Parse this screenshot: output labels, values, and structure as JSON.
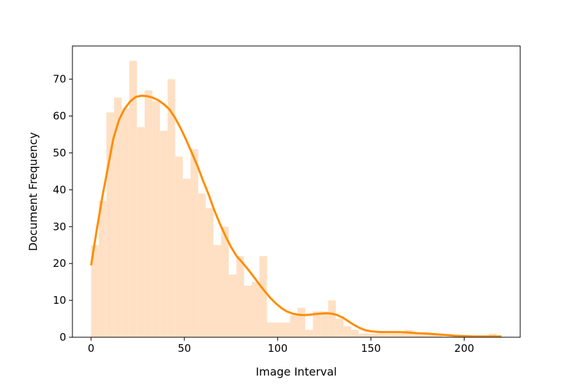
{
  "chart_data": {
    "type": "bar",
    "title": "",
    "xlabel": "Image Interval",
    "ylabel": "Document Frequency",
    "xlim": [
      -10,
      230
    ],
    "ylim": [
      0,
      79
    ],
    "xticks": [
      0,
      50,
      100,
      150,
      200
    ],
    "yticks": [
      0,
      10,
      20,
      30,
      40,
      50,
      60,
      70
    ],
    "grid": false,
    "legend": "none",
    "bin_width": 4.1,
    "bar_color": "#ffe0c4",
    "line_color": "#ff8c00",
    "bins": [
      {
        "x": 0,
        "y": 25
      },
      {
        "x": 4.1,
        "y": 37
      },
      {
        "x": 8.2,
        "y": 61
      },
      {
        "x": 12.3,
        "y": 65
      },
      {
        "x": 16.4,
        "y": 62
      },
      {
        "x": 20.5,
        "y": 75
      },
      {
        "x": 24.6,
        "y": 57
      },
      {
        "x": 28.7,
        "y": 67
      },
      {
        "x": 32.8,
        "y": 64
      },
      {
        "x": 36.9,
        "y": 56
      },
      {
        "x": 41.0,
        "y": 70
      },
      {
        "x": 45.1,
        "y": 49
      },
      {
        "x": 49.2,
        "y": 43
      },
      {
        "x": 53.3,
        "y": 51
      },
      {
        "x": 57.4,
        "y": 39
      },
      {
        "x": 61.5,
        "y": 35
      },
      {
        "x": 65.6,
        "y": 25
      },
      {
        "x": 69.7,
        "y": 30
      },
      {
        "x": 73.8,
        "y": 17
      },
      {
        "x": 77.9,
        "y": 22
      },
      {
        "x": 82.0,
        "y": 14
      },
      {
        "x": 86.1,
        "y": 15
      },
      {
        "x": 90.2,
        "y": 22
      },
      {
        "x": 94.3,
        "y": 4
      },
      {
        "x": 98.4,
        "y": 4
      },
      {
        "x": 102.5,
        "y": 4
      },
      {
        "x": 106.6,
        "y": 6
      },
      {
        "x": 110.7,
        "y": 8
      },
      {
        "x": 114.8,
        "y": 2
      },
      {
        "x": 118.9,
        "y": 7
      },
      {
        "x": 123.0,
        "y": 7
      },
      {
        "x": 127.1,
        "y": 10
      },
      {
        "x": 131.2,
        "y": 5
      },
      {
        "x": 135.3,
        "y": 3
      },
      {
        "x": 139.4,
        "y": 2
      },
      {
        "x": 143.5,
        "y": 1
      },
      {
        "x": 147.6,
        "y": 1
      },
      {
        "x": 151.7,
        "y": 1
      },
      {
        "x": 155.8,
        "y": 1
      },
      {
        "x": 159.9,
        "y": 1
      },
      {
        "x": 164.0,
        "y": 1
      },
      {
        "x": 168.1,
        "y": 2
      },
      {
        "x": 172.2,
        "y": 1
      },
      {
        "x": 176.3,
        "y": 1
      },
      {
        "x": 180.4,
        "y": 1
      },
      {
        "x": 184.5,
        "y": 1
      },
      {
        "x": 188.6,
        "y": 0
      },
      {
        "x": 192.7,
        "y": 0
      },
      {
        "x": 196.8,
        "y": 0
      },
      {
        "x": 200.9,
        "y": 0
      },
      {
        "x": 205.0,
        "y": 0
      },
      {
        "x": 209.1,
        "y": 0
      },
      {
        "x": 213.2,
        "y": 1
      }
    ],
    "kde": {
      "x": [
        0,
        3,
        6,
        9,
        12,
        15,
        18,
        21,
        24,
        27,
        30,
        33,
        36,
        39,
        42,
        45,
        48,
        51,
        54,
        57,
        60,
        63,
        66,
        69,
        72,
        75,
        78,
        81,
        84,
        87,
        90,
        93,
        96,
        99,
        102,
        105,
        108,
        111,
        114,
        117,
        120,
        123,
        126,
        129,
        132,
        135,
        138,
        141,
        144,
        147,
        150,
        155,
        160,
        165,
        170,
        175,
        180,
        185,
        190,
        195,
        200,
        205,
        210,
        215,
        220
      ],
      "y": [
        19.5,
        29,
        38,
        46,
        54,
        59,
        62,
        64,
        65.2,
        65.5,
        65.4,
        65,
        64.3,
        63.2,
        61.8,
        59.5,
        56.7,
        53.5,
        50,
        46.5,
        42.5,
        38.7,
        34.5,
        30.8,
        27.5,
        24.5,
        22,
        20.3,
        18.5,
        16.5,
        14.5,
        12.5,
        10.7,
        9.2,
        7.9,
        7,
        6.4,
        6.1,
        6.0,
        6.1,
        6.3,
        6.4,
        6.5,
        6.4,
        6.0,
        5.3,
        4.3,
        3.3,
        2.5,
        1.9,
        1.6,
        1.4,
        1.4,
        1.4,
        1.3,
        1.1,
        1.0,
        0.8,
        0.6,
        0.4,
        0.3,
        0.2,
        0.2,
        0.2,
        0.2
      ]
    }
  }
}
